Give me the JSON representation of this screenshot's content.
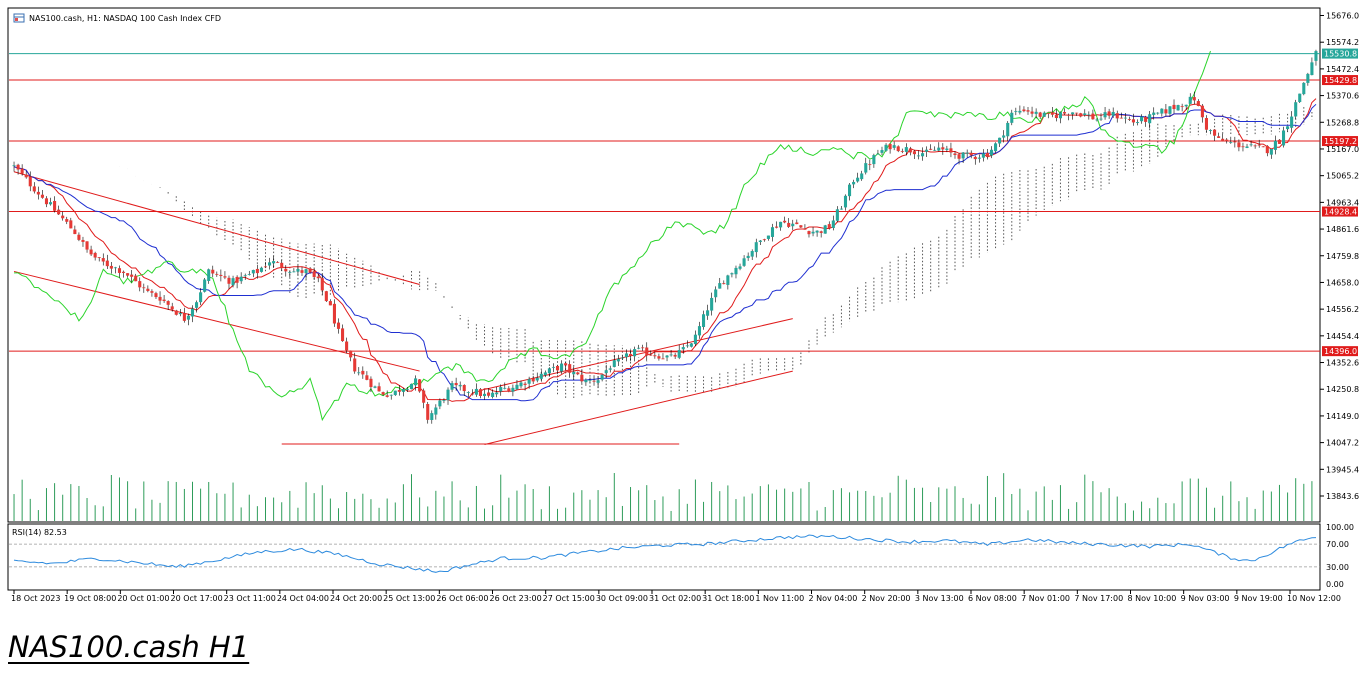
{
  "header": {
    "symbol_text": "NAS100.cash, H1:  NASDAQ 100 Cash Index CFD",
    "icon": "chart-window-icon"
  },
  "caption": "NAS100.cash H1",
  "chart_data": [
    {
      "type": "candlestick",
      "symbol": "NAS100.cash",
      "timeframe": "H1",
      "description": "NASDAQ 100 Cash Index CFD",
      "price_axis": {
        "ticks": [
          "15676.0",
          "15574.2",
          "15472.4",
          "15370.6",
          "15268.8",
          "15167.0",
          "15065.2",
          "14963.4",
          "14861.6",
          "14759.8",
          "14658.0",
          "14556.2",
          "14454.4",
          "14352.6",
          "14250.8",
          "14149.0",
          "14047.2",
          "13945.4",
          "13843.6"
        ],
        "ylim": [
          13843.6,
          15676.0
        ]
      },
      "time_axis": {
        "labels": [
          "18 Oct 2023",
          "19 Oct 08:00",
          "20 Oct 01:00",
          "20 Oct 17:00",
          "23 Oct 11:00",
          "24 Oct 04:00",
          "24 Oct 20:00",
          "25 Oct 13:00",
          "26 Oct 06:00",
          "26 Oct 23:00",
          "27 Oct 15:00",
          "30 Oct 09:00",
          "31 Oct 02:00",
          "31 Oct 18:00",
          "1 Nov 11:00",
          "2 Nov 04:00",
          "2 Nov 20:00",
          "3 Nov 13:00",
          "6 Nov 08:00",
          "7 Nov 01:00",
          "7 Nov 17:00",
          "8 Nov 10:00",
          "9 Nov 03:00",
          "9 Nov 19:00",
          "10 Nov 12:00"
        ]
      },
      "close_path": [
        [
          0,
          15100
        ],
        [
          3,
          15050
        ],
        [
          6,
          15000
        ],
        [
          9,
          14950
        ],
        [
          12,
          14900
        ],
        [
          15,
          14850
        ],
        [
          18,
          14780
        ],
        [
          21,
          14740
        ],
        [
          24,
          14720
        ],
        [
          27,
          14700
        ],
        [
          30,
          14660
        ],
        [
          33,
          14620
        ],
        [
          36,
          14600
        ],
        [
          39,
          14560
        ],
        [
          42,
          14520
        ],
        [
          45,
          14590
        ],
        [
          48,
          14700
        ],
        [
          51,
          14680
        ],
        [
          54,
          14660
        ],
        [
          57,
          14680
        ],
        [
          60,
          14700
        ],
        [
          63,
          14740
        ],
        [
          66,
          14720
        ],
        [
          69,
          14700
        ],
        [
          72,
          14700
        ],
        [
          75,
          14660
        ],
        [
          78,
          14560
        ],
        [
          81,
          14420
        ],
        [
          84,
          14330
        ],
        [
          87,
          14290
        ],
        [
          90,
          14240
        ],
        [
          93,
          14230
        ],
        [
          96,
          14260
        ],
        [
          99,
          14280
        ],
        [
          102,
          14140
        ],
        [
          105,
          14200
        ],
        [
          108,
          14260
        ],
        [
          111,
          14250
        ],
        [
          114,
          14240
        ],
        [
          117,
          14220
        ],
        [
          120,
          14250
        ],
        [
          123,
          14260
        ],
        [
          126,
          14280
        ],
        [
          129,
          14300
        ],
        [
          132,
          14320
        ],
        [
          135,
          14340
        ],
        [
          138,
          14310
        ],
        [
          141,
          14280
        ],
        [
          144,
          14290
        ],
        [
          147,
          14340
        ],
        [
          150,
          14360
        ],
        [
          153,
          14400
        ],
        [
          156,
          14390
        ],
        [
          159,
          14380
        ],
        [
          162,
          14370
        ],
        [
          165,
          14400
        ],
        [
          168,
          14450
        ],
        [
          171,
          14560
        ],
        [
          174,
          14650
        ],
        [
          177,
          14700
        ],
        [
          180,
          14750
        ],
        [
          183,
          14800
        ],
        [
          186,
          14850
        ],
        [
          189,
          14890
        ],
        [
          192,
          14880
        ],
        [
          195,
          14860
        ],
        [
          198,
          14850
        ],
        [
          201,
          14870
        ],
        [
          204,
          14950
        ],
        [
          207,
          15050
        ],
        [
          210,
          15100
        ],
        [
          213,
          15150
        ],
        [
          216,
          15180
        ],
        [
          219,
          15170
        ],
        [
          222,
          15160
        ],
        [
          225,
          15150
        ],
        [
          228,
          15170
        ],
        [
          231,
          15150
        ],
        [
          234,
          15140
        ],
        [
          237,
          15140
        ],
        [
          240,
          15150
        ],
        [
          243,
          15200
        ],
        [
          246,
          15300
        ],
        [
          249,
          15320
        ],
        [
          252,
          15300
        ],
        [
          255,
          15290
        ],
        [
          258,
          15300
        ],
        [
          261,
          15310
        ],
        [
          264,
          15300
        ],
        [
          267,
          15280
        ],
        [
          270,
          15300
        ],
        [
          273,
          15290
        ],
        [
          276,
          15270
        ],
        [
          279,
          15280
        ],
        [
          282,
          15300
        ],
        [
          285,
          15320
        ],
        [
          288,
          15340
        ],
        [
          291,
          15360
        ],
        [
          294,
          15250
        ],
        [
          297,
          15200
        ],
        [
          300,
          15190
        ],
        [
          303,
          15180
        ],
        [
          306,
          15170
        ],
        [
          309,
          15165
        ],
        [
          312,
          15200
        ],
        [
          315,
          15300
        ],
        [
          318,
          15420
        ],
        [
          321,
          15530
        ]
      ],
      "bars_total": 322,
      "horizontal_levels": [
        {
          "price": 15530.8,
          "label": "15530.8",
          "color": "#26a69a",
          "style": "current-price"
        },
        {
          "price": 15429.8,
          "label": "15429.8",
          "color": "#e01b1b",
          "style": "resistance"
        },
        {
          "price": 15197.2,
          "label": "15197.2",
          "color": "#e01b1b",
          "style": "support"
        },
        {
          "price": 14928.4,
          "label": "14928.4",
          "color": "#e01b1b",
          "style": "support"
        },
        {
          "price": 14396.0,
          "label": "14396.0",
          "color": "#e01b1b",
          "style": "support"
        }
      ],
      "trendlines": [
        {
          "name": "descending-channel-upper",
          "from": [
            0,
            15080
          ],
          "to": [
            100,
            14650
          ]
        },
        {
          "name": "descending-channel-lower",
          "from": [
            0,
            14700
          ],
          "to": [
            100,
            14320
          ]
        },
        {
          "name": "double-bottom-line",
          "from": [
            66,
            14042
          ],
          "to": [
            164,
            14042
          ]
        },
        {
          "name": "ascending-channel-upper",
          "from": [
            116,
            14250
          ],
          "to": [
            192,
            14520
          ]
        },
        {
          "name": "ascending-channel-lower",
          "from": [
            116,
            14040
          ],
          "to": [
            192,
            14320
          ]
        }
      ],
      "indicators": [
        "Ichimoku Kinko Hyo (Tenkan red, Kijun blue, Chikou green, Kumo dotted)"
      ],
      "colors": {
        "bull": "#26a69a",
        "bear": "#e53935",
        "tenkan": "#e01b1b",
        "kijun": "#1f2fd1",
        "chikou": "#2bd42b",
        "kumo": "#444444",
        "level": "#e01b1b",
        "current": "#26a69a"
      }
    },
    {
      "type": "line",
      "name": "RSI(14)",
      "label_text": "RSI(14) 82.53",
      "current_value": 82.53,
      "ylim": [
        0,
        100
      ],
      "ticks": [
        "100.00",
        "70.00",
        "30.00",
        "0.00"
      ],
      "levels": [
        70,
        30
      ],
      "color": "#2e8bde",
      "path": [
        [
          0,
          40
        ],
        [
          10,
          36
        ],
        [
          20,
          45
        ],
        [
          30,
          38
        ],
        [
          40,
          30
        ],
        [
          50,
          42
        ],
        [
          60,
          56
        ],
        [
          70,
          61
        ],
        [
          80,
          52
        ],
        [
          90,
          35
        ],
        [
          100,
          26
        ],
        [
          105,
          21
        ],
        [
          110,
          30
        ],
        [
          120,
          45
        ],
        [
          130,
          46
        ],
        [
          140,
          55
        ],
        [
          150,
          63
        ],
        [
          160,
          68
        ],
        [
          170,
          70
        ],
        [
          180,
          76
        ],
        [
          190,
          82
        ],
        [
          200,
          84
        ],
        [
          210,
          79
        ],
        [
          220,
          74
        ],
        [
          230,
          76
        ],
        [
          240,
          69
        ],
        [
          250,
          78
        ],
        [
          260,
          72
        ],
        [
          270,
          69
        ],
        [
          280,
          66
        ],
        [
          290,
          70
        ],
        [
          300,
          46
        ],
        [
          305,
          40
        ],
        [
          310,
          55
        ],
        [
          315,
          72
        ],
        [
          321,
          82.53
        ]
      ]
    }
  ]
}
